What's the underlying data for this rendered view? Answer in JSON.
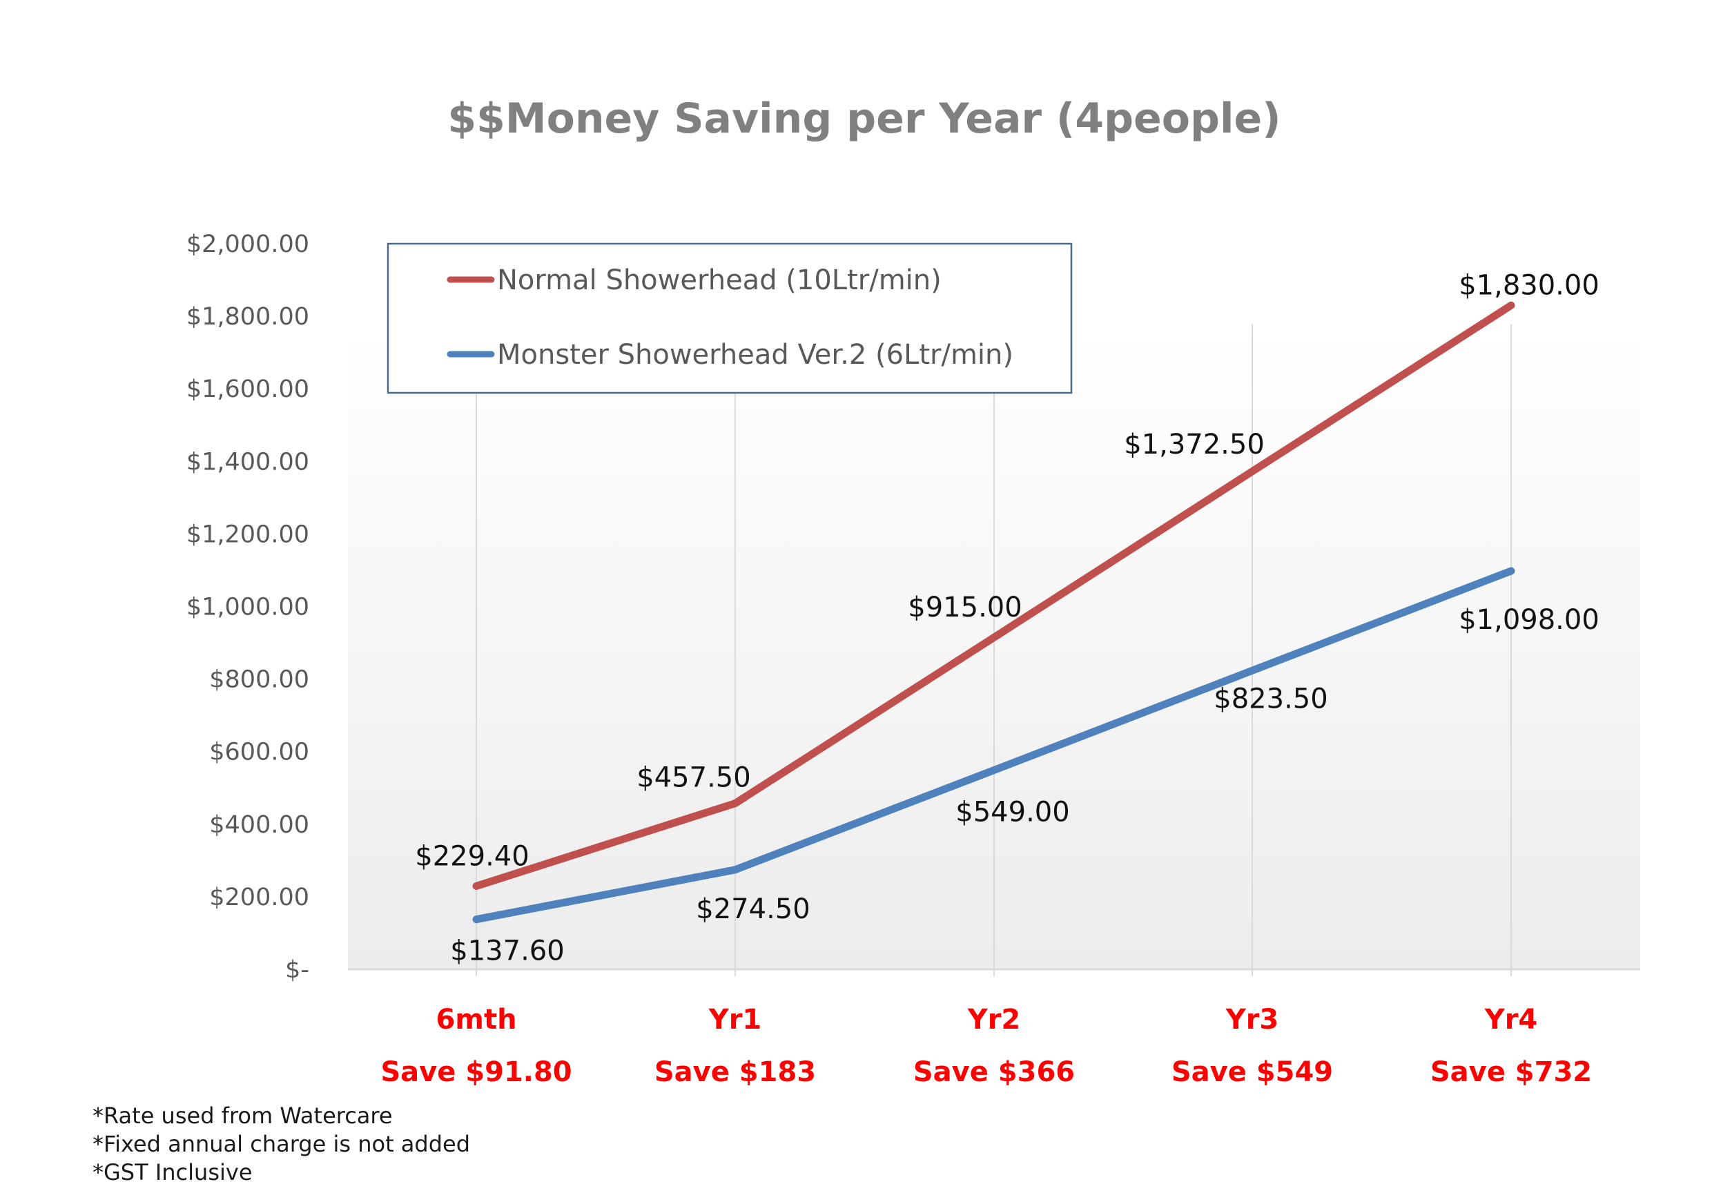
{
  "chart_data": {
    "type": "line",
    "title": "$$Money Saving per Year (4people)",
    "categories": [
      "6mth",
      "Yr1",
      "Yr2",
      "Yr3",
      "Yr4"
    ],
    "savings_labels": [
      "Save $91.80",
      "Save $183",
      "Save $366",
      "Save $549",
      "Save $732"
    ],
    "ylim": [
      0,
      2000
    ],
    "yticks": [
      {
        "value": 0,
        "label": "$-"
      },
      {
        "value": 200,
        "label": "$200.00"
      },
      {
        "value": 400,
        "label": "$400.00"
      },
      {
        "value": 600,
        "label": "$600.00"
      },
      {
        "value": 800,
        "label": "$800.00"
      },
      {
        "value": 1000,
        "label": "$1,000.00"
      },
      {
        "value": 1200,
        "label": "$1,200.00"
      },
      {
        "value": 1400,
        "label": "$1,400.00"
      },
      {
        "value": 1600,
        "label": "$1,600.00"
      },
      {
        "value": 1800,
        "label": "$1,800.00"
      },
      {
        "value": 2000,
        "label": "$2,000.00"
      }
    ],
    "series": [
      {
        "name": "Normal Showerhead (10Ltr/min)",
        "color": "#c0504d",
        "values": [
          229.4,
          457.5,
          915,
          1372.5,
          1830
        ],
        "labels": [
          "$229.40",
          "$457.50",
          "$915.00",
          "$1,372.50",
          "$1,830.00"
        ]
      },
      {
        "name": "Monster Showerhead Ver.2 (6Ltr/min)",
        "color": "#4f81bd",
        "values": [
          137.6,
          274.5,
          549,
          823.5,
          1098
        ],
        "labels": [
          "$137.60",
          "$274.50",
          "$549.00",
          "$823.50",
          "$1,098.00"
        ]
      }
    ],
    "legend_position": "top-left",
    "grid": "vertical"
  },
  "notes": [
    "*Rate used from Watercare",
    "*Fixed annual charge is not added",
    "*GST Inclusive"
  ]
}
